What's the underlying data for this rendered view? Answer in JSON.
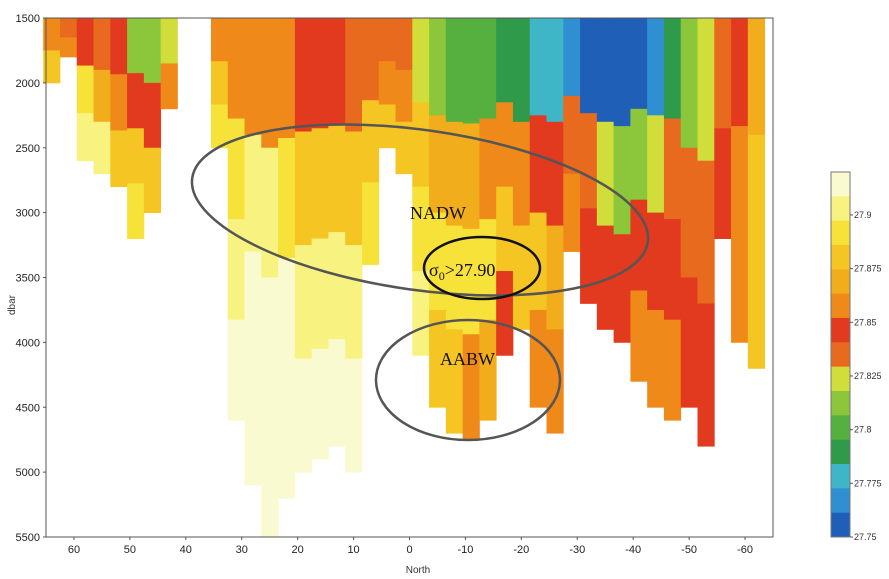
{
  "chart_data": {
    "type": "heatmap",
    "title": "",
    "xlabel": "North",
    "ylabel": "dbar",
    "xlim": [
      65,
      -65
    ],
    "ylim": [
      5500,
      1500
    ],
    "x_ticks": [
      60,
      50,
      40,
      30,
      20,
      10,
      0,
      -10,
      -20,
      -30,
      -40,
      -50,
      -60
    ],
    "x_tick_labels": [
      "60",
      "50",
      "40",
      "30",
      "20",
      "10",
      "0",
      "-10",
      "-20",
      "-30",
      "-40",
      "-50",
      "-60"
    ],
    "y_ticks": [
      1500,
      2000,
      2500,
      3000,
      3500,
      4000,
      4500,
      5000,
      5500
    ],
    "y_tick_labels": [
      "1500",
      "2000",
      "2500",
      "3000",
      "3500",
      "4000",
      "4500",
      "5000",
      "5500"
    ],
    "colorbar": {
      "min": 27.75,
      "max": 27.92,
      "ticks": [
        "27.75",
        "27.775",
        "27.8",
        "27.825",
        "27.85",
        "27.875",
        "27.9"
      ],
      "colors": [
        "#1f5fb8",
        "#2f8fd0",
        "#3fb5c8",
        "#2e9a4a",
        "#55b040",
        "#8cc63a",
        "#d0dd3a",
        "#e86a1e",
        "#e23a1f",
        "#ef8a1a",
        "#f2ad1c",
        "#f5c524",
        "#f7e23a",
        "#f8f280",
        "#fafad0"
      ]
    },
    "profiles": [
      {
        "lat": 64,
        "top": 1500,
        "bottom": 2000,
        "values": [
          27.86,
          27.875
        ]
      },
      {
        "lat": 61,
        "top": 1500,
        "bottom": 1800,
        "values": [
          27.83,
          27.86
        ]
      },
      {
        "lat": 58,
        "top": 1500,
        "bottom": 2600,
        "values": [
          27.85,
          27.89,
          27.9
        ]
      },
      {
        "lat": 55,
        "top": 1500,
        "bottom": 2700,
        "values": [
          27.84,
          27.87,
          27.9
        ]
      },
      {
        "lat": 52,
        "top": 1500,
        "bottom": 2800,
        "values": [
          27.85,
          27.86,
          27.88
        ]
      },
      {
        "lat": 49,
        "top": 1500,
        "bottom": 3200,
        "values": [
          27.81,
          27.85,
          27.88,
          27.89
        ]
      },
      {
        "lat": 46,
        "top": 1500,
        "bottom": 3000,
        "values": [
          27.81,
          27.85,
          27.88
        ]
      },
      {
        "lat": 43,
        "top": 1500,
        "bottom": 2200,
        "values": [
          27.82,
          27.86
        ]
      },
      {
        "lat": 34,
        "top": 1500,
        "bottom": 2500,
        "values": [
          27.86,
          27.875,
          27.89
        ]
      },
      {
        "lat": 31,
        "top": 1500,
        "bottom": 4600,
        "values": [
          27.86,
          27.89,
          27.9,
          27.91
        ]
      },
      {
        "lat": 28,
        "top": 1500,
        "bottom": 5100,
        "values": [
          27.86,
          27.9,
          27.915,
          27.92
        ]
      },
      {
        "lat": 25,
        "top": 1500,
        "bottom": 5500,
        "values": [
          27.86,
          27.9,
          27.915,
          27.92
        ]
      },
      {
        "lat": 22,
        "top": 1500,
        "bottom": 5200,
        "values": [
          27.86,
          27.89,
          27.91,
          27.91
        ]
      },
      {
        "lat": 19,
        "top": 1500,
        "bottom": 5000,
        "values": [
          27.85,
          27.88,
          27.9,
          27.91
        ]
      },
      {
        "lat": 16,
        "top": 1500,
        "bottom": 4900,
        "values": [
          27.85,
          27.88,
          27.9,
          27.91
        ]
      },
      {
        "lat": 13,
        "top": 1500,
        "bottom": 4800,
        "values": [
          27.85,
          27.875,
          27.9,
          27.91
        ]
      },
      {
        "lat": 10,
        "top": 1500,
        "bottom": 5000,
        "values": [
          27.84,
          27.875,
          27.9,
          27.91
        ]
      },
      {
        "lat": 7,
        "top": 1500,
        "bottom": 3400,
        "values": [
          27.84,
          27.875,
          27.89
        ]
      },
      {
        "lat": 4,
        "top": 1500,
        "bottom": 2500,
        "values": [
          27.83,
          27.86,
          27.875
        ]
      },
      {
        "lat": 1,
        "top": 1500,
        "bottom": 2700,
        "values": [
          27.83,
          27.86,
          27.88
        ]
      },
      {
        "lat": -2,
        "top": 1500,
        "bottom": 4100,
        "values": [
          27.82,
          27.875,
          27.89,
          27.9
        ]
      },
      {
        "lat": -5,
        "top": 1500,
        "bottom": 4500,
        "values": [
          27.81,
          27.87,
          27.89,
          27.875
        ]
      },
      {
        "lat": -8,
        "top": 1500,
        "bottom": 4700,
        "values": [
          27.8,
          27.87,
          27.89,
          27.875
        ]
      },
      {
        "lat": -11,
        "top": 1500,
        "bottom": 4750,
        "values": [
          27.8,
          27.87,
          27.89,
          27.86
        ]
      },
      {
        "lat": -14,
        "top": 1500,
        "bottom": 4600,
        "values": [
          27.8,
          27.86,
          27.89,
          27.87
        ]
      },
      {
        "lat": -17,
        "top": 1500,
        "bottom": 4100,
        "values": [
          27.79,
          27.86,
          27.88,
          27.85
        ]
      },
      {
        "lat": -20,
        "top": 1500,
        "bottom": 3900,
        "values": [
          27.79,
          27.86,
          27.88
        ]
      },
      {
        "lat": -23,
        "top": 1500,
        "bottom": 4500,
        "values": [
          27.78,
          27.85,
          27.875,
          27.86
        ]
      },
      {
        "lat": -26,
        "top": 1500,
        "bottom": 4700,
        "values": [
          27.78,
          27.85,
          27.87,
          27.86
        ]
      },
      {
        "lat": -29,
        "top": 1500,
        "bottom": 3300,
        "values": [
          27.77,
          27.84,
          27.86
        ]
      },
      {
        "lat": -32,
        "top": 1500,
        "bottom": 3700,
        "values": [
          27.76,
          27.83,
          27.85
        ]
      },
      {
        "lat": -35,
        "top": 1500,
        "bottom": 3900,
        "values": [
          27.75,
          27.82,
          27.85
        ]
      },
      {
        "lat": -38,
        "top": 1500,
        "bottom": 4000,
        "values": [
          27.75,
          27.81,
          27.85
        ]
      },
      {
        "lat": -41,
        "top": 1500,
        "bottom": 4300,
        "values": [
          27.76,
          27.81,
          27.85,
          27.855
        ]
      },
      {
        "lat": -44,
        "top": 1500,
        "bottom": 4500,
        "values": [
          27.77,
          27.82,
          27.85,
          27.86
        ]
      },
      {
        "lat": -47,
        "top": 1500,
        "bottom": 4600,
        "values": [
          27.79,
          27.83,
          27.85,
          27.86
        ]
      },
      {
        "lat": -50,
        "top": 1500,
        "bottom": 4500,
        "values": [
          27.81,
          27.84,
          27.85
        ]
      },
      {
        "lat": -53,
        "top": 1500,
        "bottom": 4800,
        "values": [
          27.82,
          27.84,
          27.85
        ]
      },
      {
        "lat": -56,
        "top": 1500,
        "bottom": 3200,
        "values": [
          27.83,
          27.85
        ]
      },
      {
        "lat": -59,
        "top": 1500,
        "bottom": 4000,
        "values": [
          27.85,
          27.86,
          27.86
        ]
      },
      {
        "lat": -62,
        "top": 1500,
        "bottom": 4200,
        "values": [
          27.87,
          27.875,
          27.875
        ]
      }
    ],
    "annotations": {
      "nadw": "NADW",
      "aabw": "AABW",
      "sigma_symbol": "σ",
      "sigma_subscript": "0",
      "sigma_condition": ">27.90"
    }
  }
}
